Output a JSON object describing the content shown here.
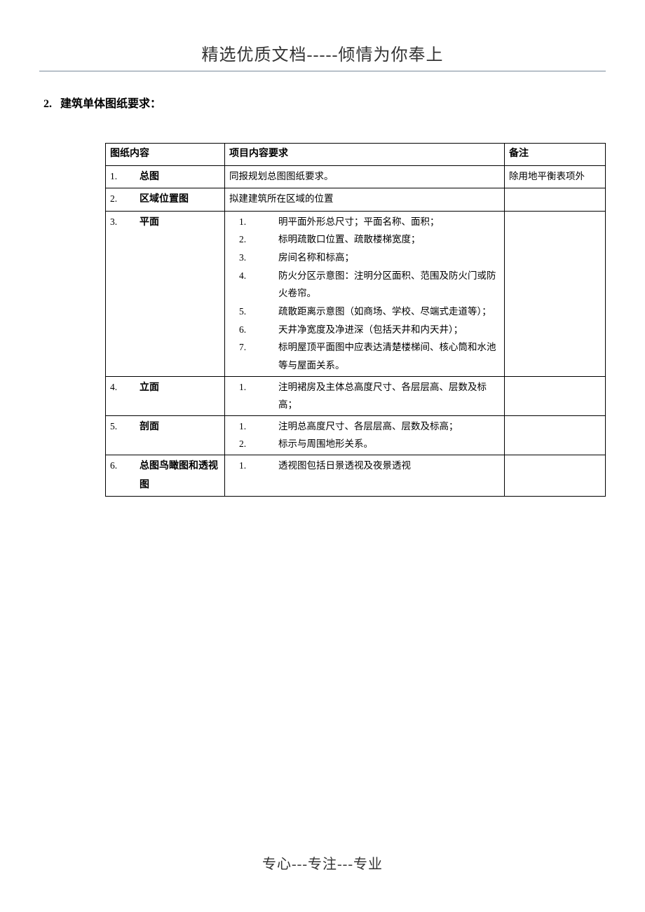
{
  "header": {
    "title": "精选优质文档-----倾情为你奉上"
  },
  "section": {
    "number": "2.",
    "title": "建筑单体图纸要求："
  },
  "table": {
    "headers": {
      "col1": "图纸内容",
      "col2": "项目内容要求",
      "col3": "备注"
    },
    "rows": [
      {
        "num": "1.",
        "name": "总图",
        "req_plain": "同报规划总图图纸要求。",
        "remark": "除用地平衡表项外"
      },
      {
        "num": "2.",
        "name": "区域位置图",
        "req_plain": "拟建建筑所在区域的位置",
        "remark": ""
      },
      {
        "num": "3.",
        "name": "平面",
        "req_items": [
          "明平面外形总尺寸；平面名称、面积；",
          "标明疏散口位置、疏散楼梯宽度；",
          "房间名称和标高；",
          "防火分区示意图：注明分区面积、范围及防火门或防火卷帘。",
          "疏散距离示意图（如商场、学校、尽端式走道等）；",
          "天井净宽度及净进深（包括天井和内天井）；",
          "标明屋顶平面图中应表达清楚楼梯间、核心筒和水池等与屋面关系。"
        ],
        "remark": ""
      },
      {
        "num": "4.",
        "name": "立面",
        "req_items": [
          "注明裙房及主体总高度尺寸、各层层高、层数及标高；"
        ],
        "remark": ""
      },
      {
        "num": "5.",
        "name": "剖面",
        "req_items": [
          "注明总高度尺寸、各层层高、层数及标高；",
          "标示与周围地形关系。"
        ],
        "remark": ""
      },
      {
        "num": "6.",
        "name": "总图鸟瞰图和透视图",
        "name_line1": "总图鸟瞰图和透视",
        "name_line2": "图",
        "req_items": [
          "透视图包括日景透视及夜景透视"
        ],
        "remark": ""
      }
    ]
  },
  "footer": {
    "text": "专心---专注---专业"
  },
  "style": {
    "page_bg": "#ffffff",
    "text_color": "#000000",
    "header_color": "#333333",
    "border_color": "#000000",
    "rule_color": "#7a8a9a",
    "body_fontsize": 13.5,
    "header_fontsize": 24,
    "footer_fontsize": 20,
    "section_fontsize": 16
  }
}
